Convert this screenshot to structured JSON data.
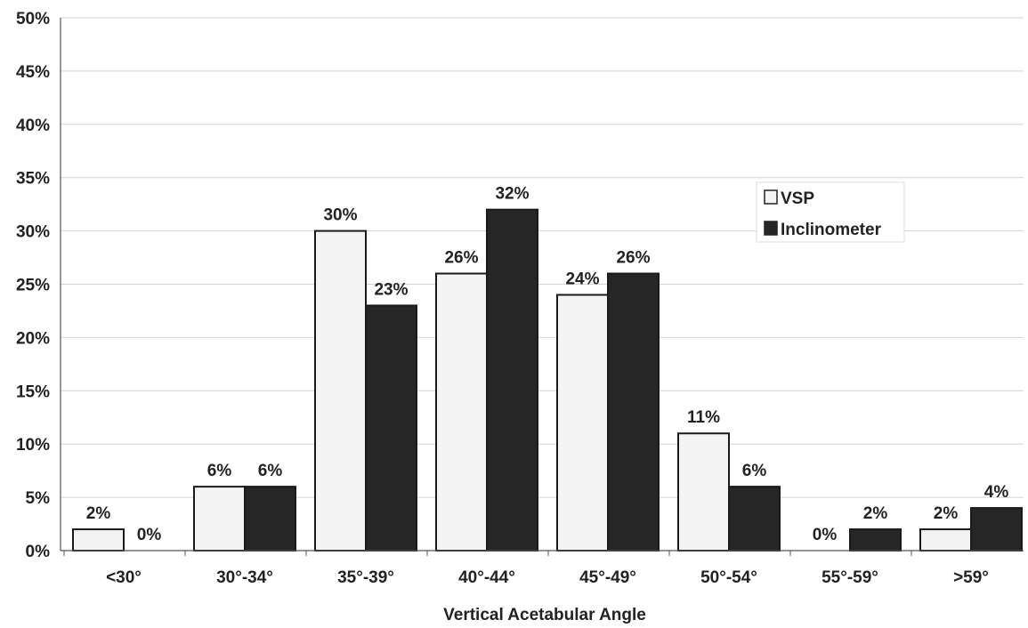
{
  "chart_data": {
    "type": "bar",
    "xlabel": "Vertical Acetabular Angle",
    "ylabel": "",
    "ylim": [
      0,
      50
    ],
    "y_ticks": [
      "0%",
      "5%",
      "10%",
      "15%",
      "20%",
      "25%",
      "30%",
      "35%",
      "40%",
      "45%",
      "50%"
    ],
    "categories": [
      "<30°",
      "30°-34°",
      "35°-39°",
      "40°-44°",
      "45°-49°",
      "50°-54°",
      "55°-59°",
      ">59°"
    ],
    "series": [
      {
        "name": "VSP",
        "values": [
          2,
          6,
          30,
          26,
          24,
          11,
          0,
          2
        ],
        "labels": [
          "2%",
          "6%",
          "30%",
          "26%",
          "24%",
          "11%",
          "0%",
          "2%"
        ],
        "color": "#f4f4f4"
      },
      {
        "name": "Inclinometer",
        "values": [
          0,
          6,
          23,
          32,
          26,
          6,
          2,
          4
        ],
        "labels": [
          "0%",
          "6%",
          "23%",
          "32%",
          "26%",
          "6%",
          "2%",
          "4%"
        ],
        "color": "#262626"
      }
    ],
    "grid": true,
    "legend_position": "right"
  }
}
